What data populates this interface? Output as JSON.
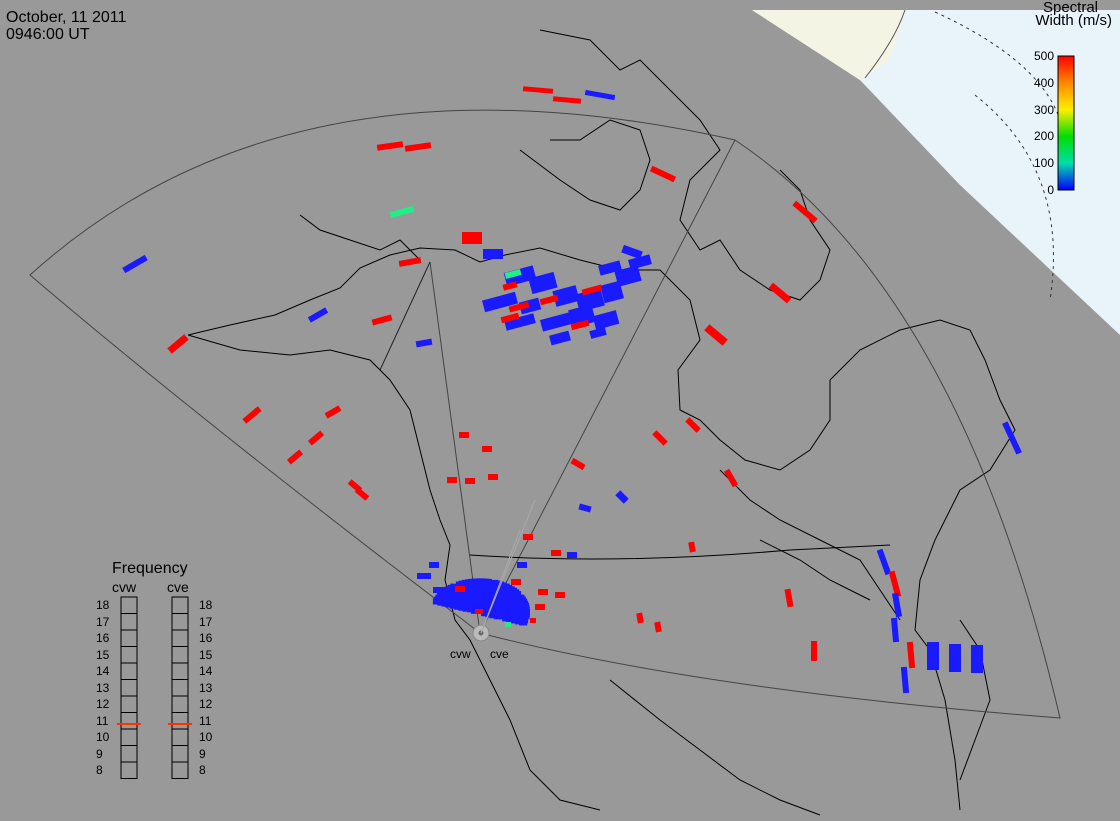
{
  "header": {
    "date": "October, 11 2011",
    "time": "0946:00 UT"
  },
  "colorbar": {
    "title_line1": "Spectral",
    "title_line2": "Width (m/s)",
    "ticks": [
      "500",
      "400",
      "300",
      "200",
      "100",
      "0"
    ],
    "colors": [
      "#ff0000",
      "#ff8800",
      "#ffee00",
      "#00dd00",
      "#00ddaa",
      "#0000ff"
    ]
  },
  "frequency": {
    "title": "Frequency",
    "radars": [
      "cvw",
      "cve"
    ],
    "ticks": [
      "18",
      "17",
      "16",
      "15",
      "14",
      "13",
      "12",
      "11",
      "10",
      "9",
      "8"
    ],
    "cvw_value_mhz": 10.8,
    "cve_value_mhz": 10.8
  },
  "radar_labels": [
    "cvw",
    "cve"
  ],
  "colors": {
    "land_gray": "#999999",
    "polar_sky": "#e8f4fa",
    "arctic_land": "#f4f4e4",
    "red": "#ff0000",
    "blue": "#1a1aff",
    "green": "#22ee88"
  }
}
